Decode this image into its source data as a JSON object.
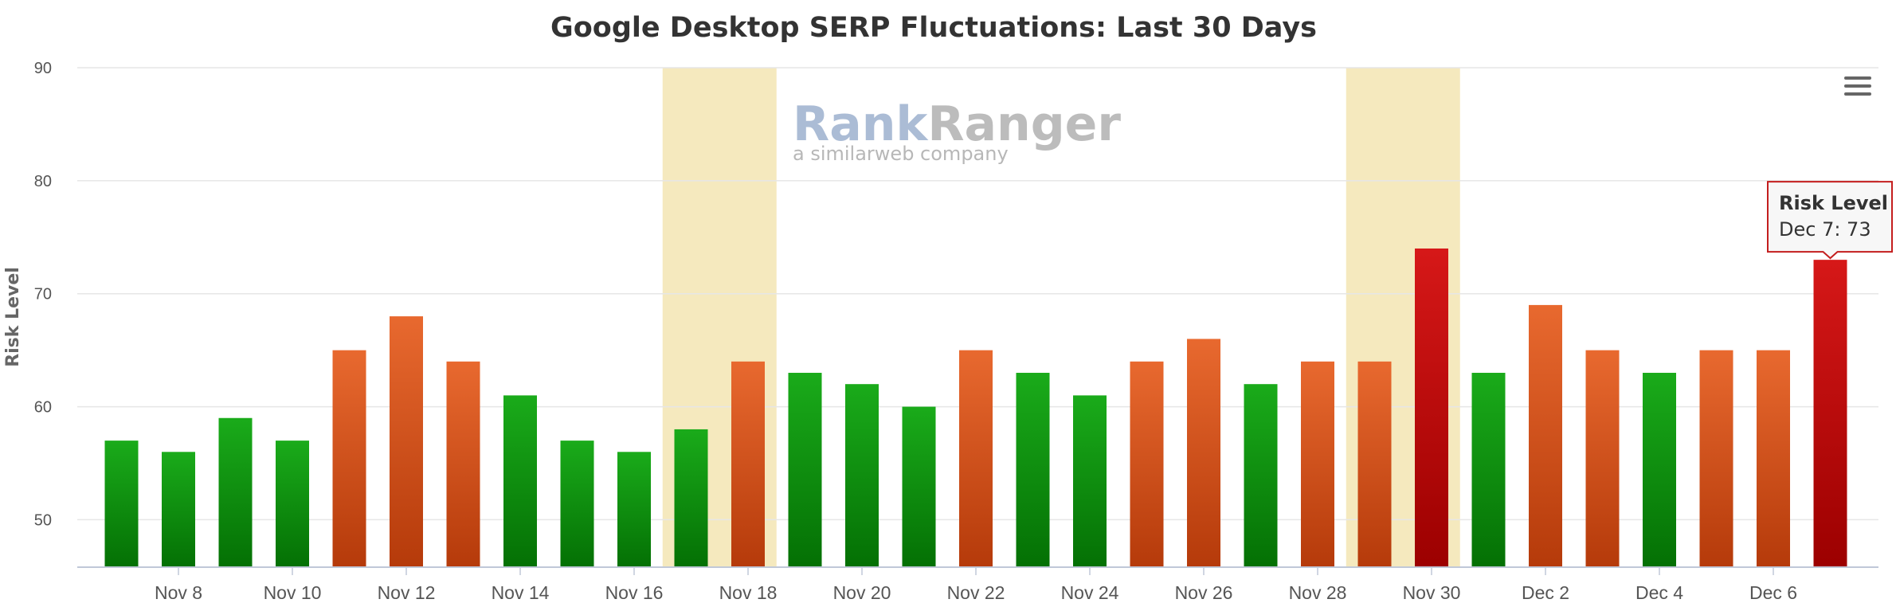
{
  "chart_data": {
    "type": "bar",
    "title": "Google Desktop SERP Fluctuations: Last 30 Days",
    "ylabel": "Risk Level",
    "xlabel": "",
    "ylim": [
      45.8,
      90
    ],
    "yticks": [
      50,
      60,
      70,
      80,
      90
    ],
    "grid": true,
    "categories": [
      "Nov 7",
      "Nov 8",
      "Nov 9",
      "Nov 10",
      "Nov 11",
      "Nov 12",
      "Nov 13",
      "Nov 14",
      "Nov 15",
      "Nov 16",
      "Nov 17",
      "Nov 18",
      "Nov 19",
      "Nov 20",
      "Nov 21",
      "Nov 22",
      "Nov 23",
      "Nov 24",
      "Nov 25",
      "Nov 26",
      "Nov 27",
      "Nov 28",
      "Nov 29",
      "Nov 30",
      "Dec 1",
      "Dec 2",
      "Dec 3",
      "Dec 4",
      "Dec 5",
      "Dec 6",
      "Dec 7"
    ],
    "xtick_labels": [
      "Nov 8",
      "Nov 10",
      "Nov 12",
      "Nov 14",
      "Nov 16",
      "Nov 18",
      "Nov 20",
      "Nov 22",
      "Nov 24",
      "Nov 26",
      "Nov 28",
      "Nov 30",
      "Dec 2",
      "Dec 4",
      "Dec 6"
    ],
    "series": [
      {
        "values": [
          57,
          56,
          59,
          57,
          65,
          68,
          64,
          61,
          57,
          56,
          58,
          64,
          63,
          62,
          60,
          65,
          63,
          61,
          64,
          66,
          62,
          64,
          64,
          74,
          63,
          69,
          65,
          63,
          65,
          65,
          73
        ]
      }
    ],
    "risk_colors": {
      "low": {
        "top": "#1aab1a",
        "bottom": "#047004"
      },
      "medium": {
        "top": "#e8692f",
        "bottom": "#b53a0a"
      },
      "high": {
        "top": "#d61818",
        "bottom": "#9c0000"
      }
    },
    "highlight_bands": [
      {
        "from": "Nov 17",
        "to": "Nov 18",
        "color": "#f5e9be"
      },
      {
        "from": "Nov 29",
        "to": "Nov 30",
        "color": "#f5e9be"
      }
    ],
    "tooltip": {
      "title": "Risk Level",
      "text": "Dec 7: 73",
      "category": "Dec 7"
    }
  },
  "watermark": {
    "brand_part1": "Rank",
    "brand_part2": "Ranger",
    "tagline": "a similarweb company"
  },
  "menu_icon": "hamburger-menu-icon"
}
